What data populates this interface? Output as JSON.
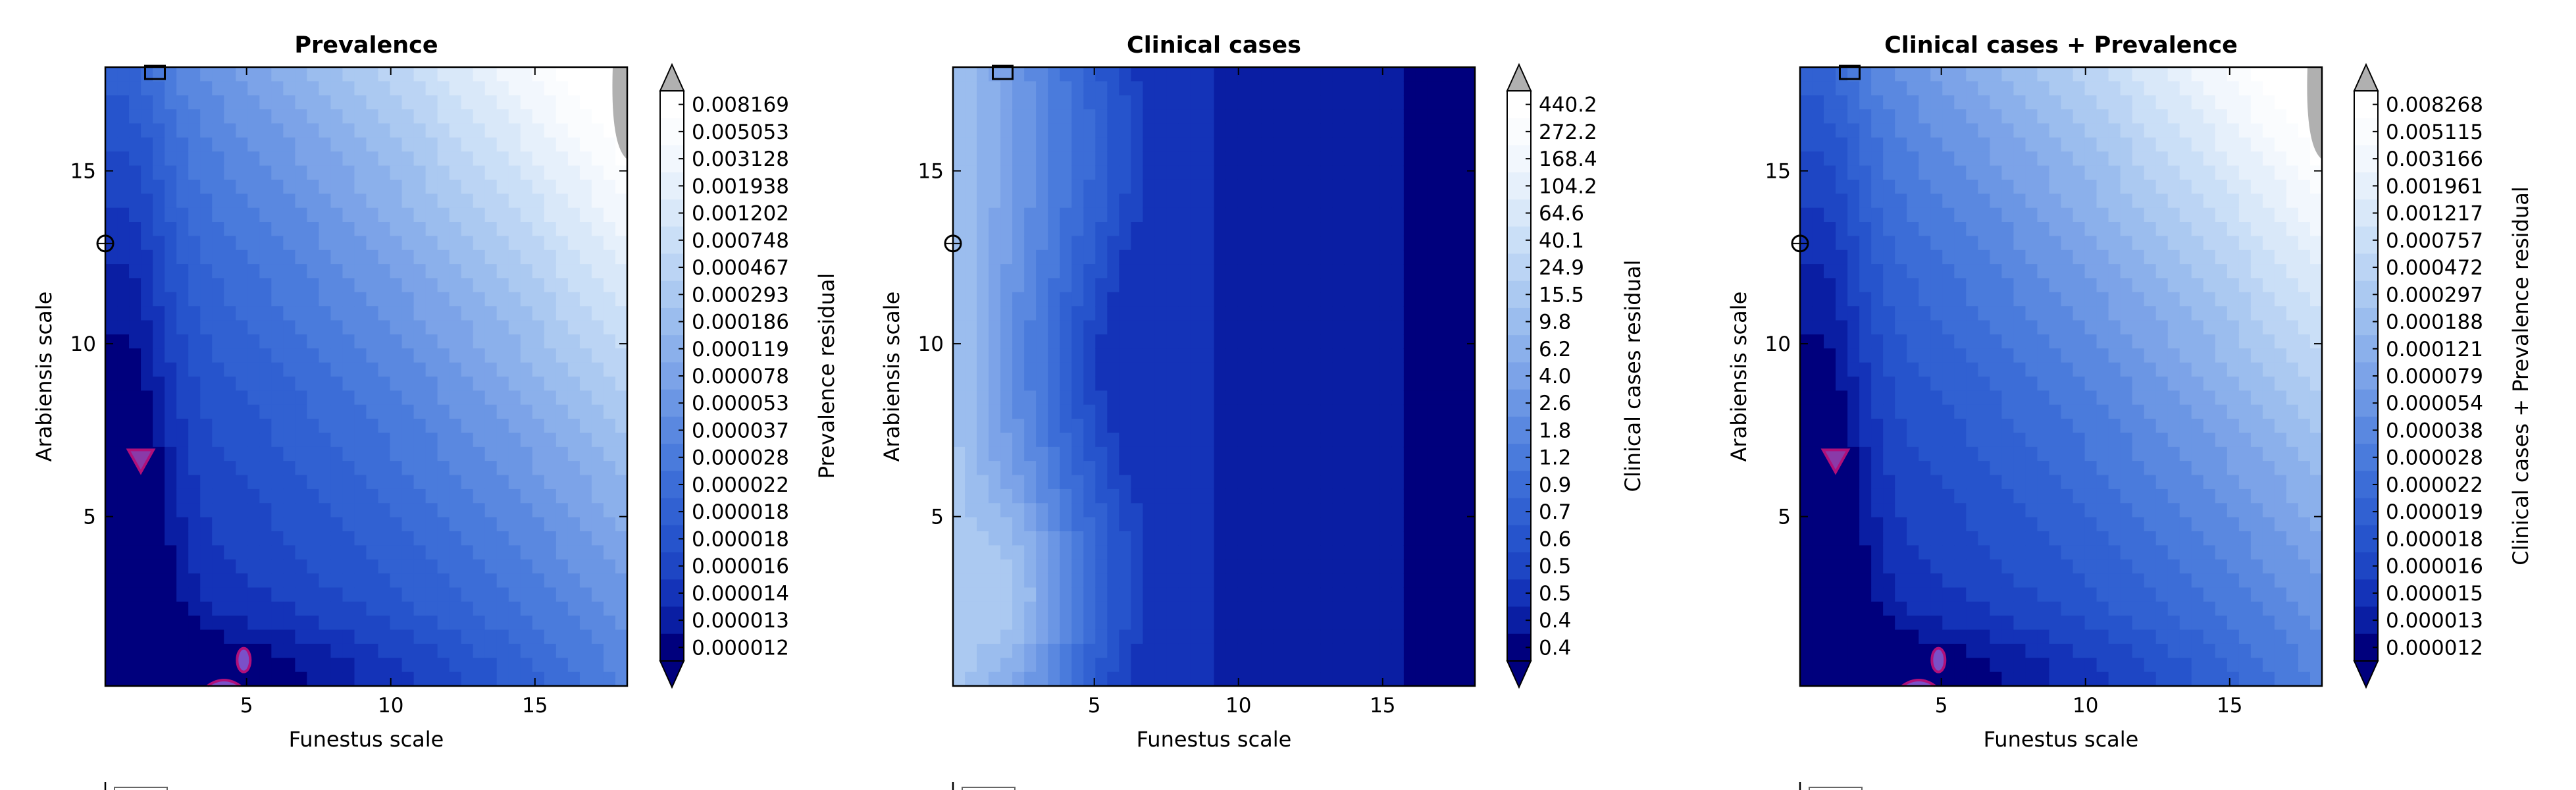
{
  "palette": [
    "#00007d",
    "#0a1ea3",
    "#1433b8",
    "#1e46c4",
    "#2654cc",
    "#3161d2",
    "#3c6dd7",
    "#4a7bdc",
    "#5a88e0",
    "#6b96e4",
    "#7ca3e8",
    "#8bb0eb",
    "#9bbdee",
    "#abc9f1",
    "#bbd4f4",
    "#cadff7",
    "#d9e8f9",
    "#e6f0fb",
    "#f2f7fd",
    "#fafcfe",
    "#ffffff"
  ],
  "overflow_color": "#b0b0b0",
  "chart_data": [
    {
      "type": "heatmap",
      "subtype": "filled-contour",
      "title": "Prevalence",
      "xlabel": "Funestus scale",
      "ylabel": "Arabiensis scale",
      "xlim": [
        0.1,
        18.2
      ],
      "ylim": [
        0.1,
        18.0
      ],
      "xticks": [
        5,
        10,
        15
      ],
      "yticks": [
        5,
        10,
        15
      ],
      "colorbar": {
        "label": "Prevalence residual",
        "levels": [
          "0.008169",
          "0.005053",
          "0.003128",
          "0.001938",
          "0.001202",
          "0.000748",
          "0.000467",
          "0.000293",
          "0.000186",
          "0.000119",
          "0.000078",
          "0.000053",
          "0.000037",
          "0.000028",
          "0.000022",
          "0.000018",
          "0.000018",
          "0.000016",
          "0.000014",
          "0.000013",
          "0.000012"
        ]
      },
      "pattern": "trough-left",
      "markers": [
        {
          "shape": "square",
          "x": 1.8,
          "y": 17.8
        },
        {
          "shape": "circle",
          "x": 0.1,
          "y": 12.9
        },
        {
          "shape": "triangle",
          "x": 1.4,
          "y": 6.7
        },
        {
          "shape": "ellipse",
          "x": 4.9,
          "y": 0.85
        }
      ]
    },
    {
      "type": "heatmap",
      "subtype": "filled-contour",
      "title": "Clinical cases",
      "xlabel": "Funestus scale",
      "ylabel": "Arabiensis scale",
      "xlim": [
        0.1,
        18.2
      ],
      "ylim": [
        0.1,
        18.0
      ],
      "xticks": [
        5,
        10,
        15
      ],
      "yticks": [
        5,
        10,
        15
      ],
      "colorbar": {
        "label": "Clinical cases residual",
        "levels": [
          "440.2",
          "272.2",
          "168.4",
          "104.2",
          "64.6",
          "40.1",
          "24.9",
          "15.5",
          "9.8",
          "6.2",
          "4.0",
          "2.6",
          "1.8",
          "1.2",
          "0.9",
          "0.7",
          "0.6",
          "0.5",
          "0.5",
          "0.4",
          "0.4"
        ]
      },
      "pattern": "trough-right",
      "markers": [
        {
          "shape": "square",
          "x": 1.8,
          "y": 17.8
        },
        {
          "shape": "circle",
          "x": 0.1,
          "y": 12.9
        }
      ]
    },
    {
      "type": "heatmap",
      "subtype": "filled-contour",
      "title": "Clinical cases + Prevalence",
      "xlabel": "Funestus scale",
      "ylabel": "Arabiensis scale",
      "xlim": [
        0.1,
        18.2
      ],
      "ylim": [
        0.1,
        18.0
      ],
      "xticks": [
        5,
        10,
        15
      ],
      "yticks": [
        5,
        10,
        15
      ],
      "colorbar": {
        "label": "Clinical cases + Prevalence residual",
        "levels": [
          "0.008268",
          "0.005115",
          "0.003166",
          "0.001961",
          "0.001217",
          "0.000757",
          "0.000472",
          "0.000297",
          "0.000188",
          "0.000121",
          "0.000079",
          "0.000054",
          "0.000038",
          "0.000028",
          "0.000022",
          "0.000019",
          "0.000018",
          "0.000016",
          "0.000015",
          "0.000013",
          "0.000012"
        ]
      },
      "pattern": "trough-left",
      "markers": [
        {
          "shape": "square",
          "x": 1.8,
          "y": 17.8
        },
        {
          "shape": "circle",
          "x": 0.1,
          "y": 12.9
        },
        {
          "shape": "triangle",
          "x": 1.4,
          "y": 6.7
        },
        {
          "shape": "ellipse",
          "x": 4.9,
          "y": 0.85
        }
      ]
    }
  ]
}
